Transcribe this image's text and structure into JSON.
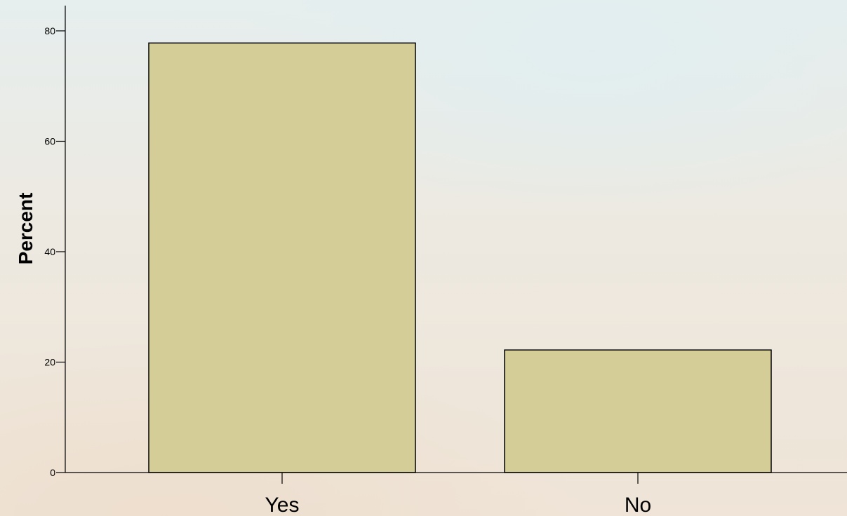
{
  "chart_data": {
    "type": "bar",
    "categories": [
      "Yes",
      "No"
    ],
    "values": [
      77.8,
      22.2
    ],
    "ylabel": "Percent",
    "xlabel": "",
    "ylim": [
      0,
      80
    ],
    "y_ticks": [
      "0",
      "20",
      "40",
      "60",
      "80"
    ],
    "grid": false,
    "bar_fill_color": "#d4cd97",
    "bar_edge_color": "#000000",
    "axis_color": "#000000"
  }
}
